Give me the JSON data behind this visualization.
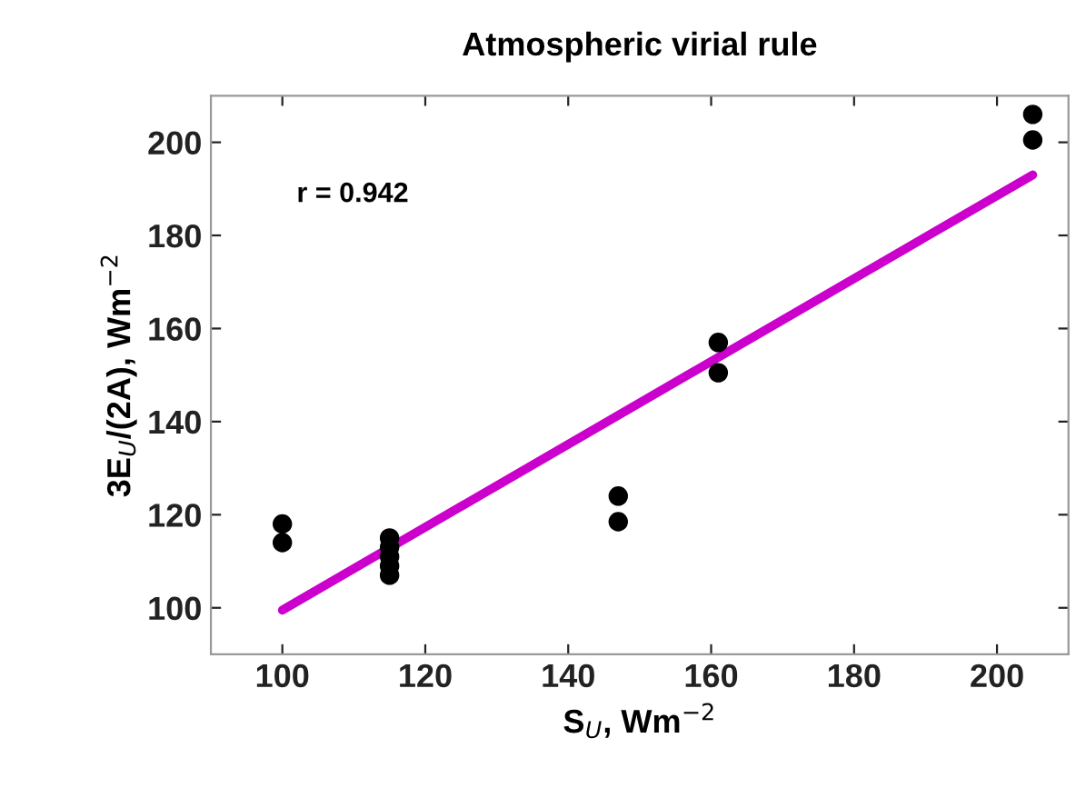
{
  "chart_data": {
    "type": "scatter",
    "title": "Atmospheric virial rule",
    "xlabel": "S$_{U}$, Wm$^{−2}$",
    "ylabel": "3E$_{U}$/(2A), Wm$^{−2}$",
    "annotations": [
      "r = 0.942"
    ],
    "xlim": [
      90,
      210
    ],
    "ylim": [
      90,
      210
    ],
    "xticks": [
      100,
      120,
      140,
      160,
      180,
      200
    ],
    "yticks": [
      100,
      120,
      140,
      160,
      180,
      200
    ],
    "grid": false,
    "legend": false,
    "series": [
      {
        "color": "#000000",
        "marker": "circle",
        "x": [
          100,
          100,
          115,
          115,
          115,
          115,
          115,
          147,
          147,
          161,
          161,
          205,
          205
        ],
        "values": [
          118,
          114,
          115,
          113,
          111,
          109,
          107,
          124,
          118.5,
          157,
          150.5,
          206,
          200.5
        ]
      },
      {
        "type": "line",
        "color": "#cc00cc",
        "marker": "none",
        "line_style": "solid",
        "x": [
          100,
          205
        ],
        "values": [
          99.5,
          193
        ]
      }
    ]
  }
}
